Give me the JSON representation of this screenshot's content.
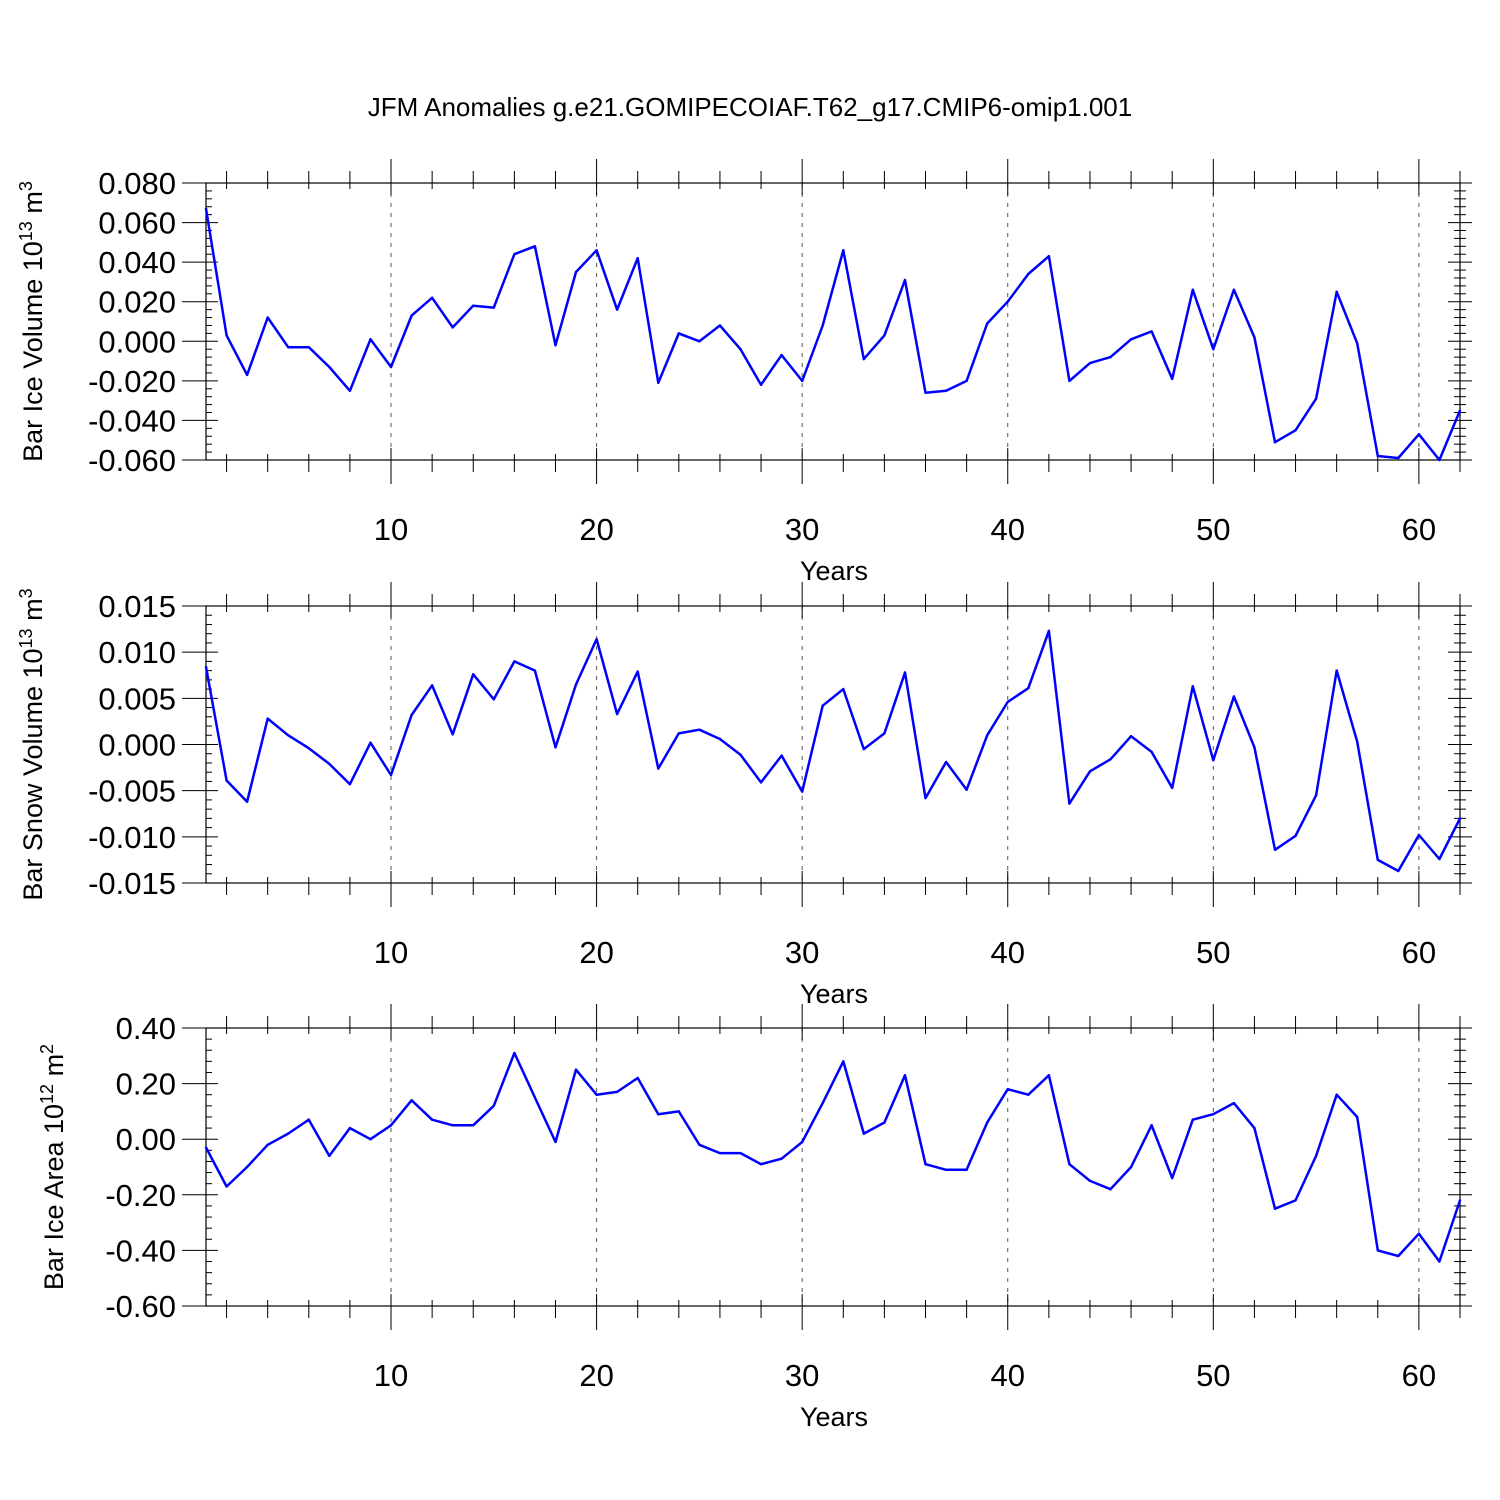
{
  "title": "JFM Anomalies g.e21.GOMIPECOIAF.T62_g17.CMIP6-omip1.001",
  "chart_data": [
    {
      "type": "line",
      "title": "",
      "xlabel": "Years",
      "ylabel": "Bar Ice Volume 10",
      "ylabel_exp": "13",
      "ylabel_unit": "m",
      "ylabel_unit_exp": "3",
      "xlim": [
        1,
        62
      ],
      "ylim": [
        -0.06,
        0.08
      ],
      "xticks": [
        10,
        20,
        30,
        40,
        50,
        60
      ],
      "yticks": [
        "0.080",
        "0.060",
        "0.040",
        "0.020",
        "0.000",
        "-0.020",
        "-0.040",
        "-0.060"
      ],
      "grid": "vertical dashed at major x ticks",
      "color": "#0000ff",
      "x": [
        1,
        2,
        3,
        4,
        5,
        6,
        7,
        8,
        9,
        10,
        11,
        12,
        13,
        14,
        15,
        16,
        17,
        18,
        19,
        20,
        21,
        22,
        23,
        24,
        25,
        26,
        27,
        28,
        29,
        30,
        31,
        32,
        33,
        34,
        35,
        36,
        37,
        38,
        39,
        40,
        41,
        42,
        43,
        44,
        45,
        46,
        47,
        48,
        49,
        50,
        51,
        52,
        53,
        54,
        55,
        56,
        57,
        58,
        59,
        60,
        61,
        62
      ],
      "values": [
        0.067,
        0.003,
        -0.017,
        0.012,
        -0.003,
        -0.003,
        -0.013,
        -0.025,
        0.001,
        -0.013,
        0.013,
        0.022,
        0.007,
        0.018,
        0.017,
        0.044,
        0.048,
        -0.002,
        0.035,
        0.046,
        0.016,
        0.042,
        -0.021,
        0.004,
        0.0,
        0.008,
        -0.004,
        -0.022,
        -0.007,
        -0.02,
        0.008,
        0.046,
        -0.009,
        0.003,
        0.031,
        -0.026,
        -0.025,
        -0.02,
        0.009,
        0.02,
        0.034,
        0.043,
        -0.02,
        -0.011,
        -0.008,
        0.001,
        0.005,
        -0.019,
        0.026,
        -0.004,
        0.026,
        0.002,
        -0.051,
        -0.045,
        -0.029,
        0.025,
        -0.001,
        -0.058,
        -0.059,
        -0.047,
        -0.06,
        -0.035
      ]
    },
    {
      "type": "line",
      "title": "",
      "xlabel": "Years",
      "ylabel": "Bar Snow Volume 10",
      "ylabel_exp": "13",
      "ylabel_unit": "m",
      "ylabel_unit_exp": "3",
      "xlim": [
        1,
        62
      ],
      "ylim": [
        -0.015,
        0.015
      ],
      "xticks": [
        10,
        20,
        30,
        40,
        50,
        60
      ],
      "yticks": [
        "0.015",
        "0.010",
        "0.005",
        "0.000",
        "-0.005",
        "-0.010",
        "-0.015"
      ],
      "grid": "vertical dashed at major x ticks",
      "color": "#0000ff",
      "x": [
        1,
        2,
        3,
        4,
        5,
        6,
        7,
        8,
        9,
        10,
        11,
        12,
        13,
        14,
        15,
        16,
        17,
        18,
        19,
        20,
        21,
        22,
        23,
        24,
        25,
        26,
        27,
        28,
        29,
        30,
        31,
        32,
        33,
        34,
        35,
        36,
        37,
        38,
        39,
        40,
        41,
        42,
        43,
        44,
        45,
        46,
        47,
        48,
        49,
        50,
        51,
        52,
        53,
        54,
        55,
        56,
        57,
        58,
        59,
        60,
        61,
        62
      ],
      "values": [
        0.0084,
        -0.0039,
        -0.0062,
        0.0028,
        0.001,
        -0.0004,
        -0.0021,
        -0.0043,
        0.0002,
        -0.0033,
        0.0032,
        0.0064,
        0.0011,
        0.0076,
        0.0049,
        0.009,
        0.008,
        -0.0003,
        0.0065,
        0.0114,
        0.0033,
        0.0079,
        -0.0026,
        0.0012,
        0.0016,
        0.0006,
        -0.0011,
        -0.0041,
        -0.0012,
        -0.0051,
        0.0042,
        0.006,
        -0.0005,
        0.0012,
        0.0078,
        -0.0058,
        -0.0019,
        -0.0049,
        0.001,
        0.0046,
        0.0061,
        0.0123,
        -0.0064,
        -0.0029,
        -0.0016,
        0.0009,
        -0.0008,
        -0.0047,
        0.0063,
        -0.0017,
        0.0052,
        -0.0003,
        -0.0114,
        -0.0099,
        -0.0055,
        0.008,
        0.0003,
        -0.0125,
        -0.0137,
        -0.0098,
        -0.0124,
        -0.008
      ]
    },
    {
      "type": "line",
      "title": "",
      "xlabel": "Years",
      "ylabel": "Bar Ice Area 10",
      "ylabel_exp": "12",
      "ylabel_unit": "m",
      "ylabel_unit_exp": "2",
      "xlim": [
        1,
        62
      ],
      "ylim": [
        -0.6,
        0.4
      ],
      "xticks": [
        10,
        20,
        30,
        40,
        50,
        60
      ],
      "yticks": [
        "0.40",
        "0.20",
        "0.00",
        "-0.20",
        "-0.40",
        "-0.60"
      ],
      "grid": "vertical dashed at major x ticks",
      "color": "#0000ff",
      "x": [
        1,
        2,
        3,
        4,
        5,
        6,
        7,
        8,
        9,
        10,
        11,
        12,
        13,
        14,
        15,
        16,
        17,
        18,
        19,
        20,
        21,
        22,
        23,
        24,
        25,
        26,
        27,
        28,
        29,
        30,
        31,
        32,
        33,
        34,
        35,
        36,
        37,
        38,
        39,
        40,
        41,
        42,
        43,
        44,
        45,
        46,
        47,
        48,
        49,
        50,
        51,
        52,
        53,
        54,
        55,
        56,
        57,
        58,
        59,
        60,
        61,
        62
      ],
      "values": [
        -0.03,
        -0.17,
        -0.1,
        -0.02,
        0.02,
        0.07,
        -0.06,
        0.04,
        0.0,
        0.05,
        0.14,
        0.07,
        0.05,
        0.05,
        0.12,
        0.31,
        0.15,
        -0.01,
        0.25,
        0.16,
        0.17,
        0.22,
        0.09,
        0.1,
        -0.02,
        -0.05,
        -0.05,
        -0.09,
        -0.07,
        -0.01,
        0.13,
        0.28,
        0.02,
        0.06,
        0.23,
        -0.09,
        -0.11,
        -0.11,
        0.06,
        0.18,
        0.16,
        0.23,
        -0.09,
        -0.15,
        -0.18,
        -0.1,
        0.05,
        -0.14,
        0.07,
        0.09,
        0.13,
        0.04,
        -0.25,
        -0.22,
        -0.06,
        0.16,
        0.08,
        -0.4,
        -0.42,
        -0.34,
        -0.44,
        -0.22
      ]
    }
  ]
}
